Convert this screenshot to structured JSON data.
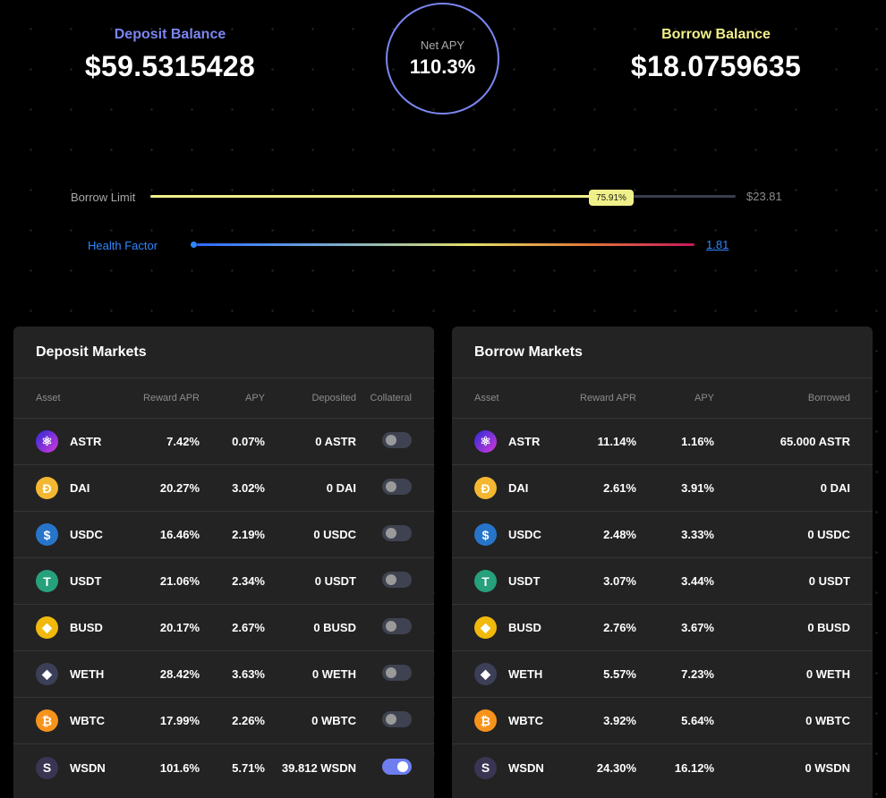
{
  "summary": {
    "deposit_label": "Deposit Balance",
    "deposit_value": "$59.5315428",
    "borrow_label": "Borrow Balance",
    "borrow_value": "$18.0759635",
    "net_apy_label": "Net APY",
    "net_apy_value": "110.3%"
  },
  "borrow_limit": {
    "label": "Borrow Limit",
    "percent_text": "75.91%",
    "percent": 75.91,
    "max_value": "$23.81"
  },
  "health_factor": {
    "label": "Health Factor",
    "value": "1.81"
  },
  "colors": {
    "deposit_accent": "#7b86f0",
    "borrow_accent": "#f0f08a",
    "health_blue": "#2f86ff",
    "toggle_on": "#6e7ef0"
  },
  "deposit_markets": {
    "title": "Deposit Markets",
    "headers": {
      "asset": "Asset",
      "reward": "Reward APR",
      "apy": "APY",
      "deposited": "Deposited",
      "collateral": "Collateral"
    },
    "rows": [
      {
        "asset": "ASTR",
        "icon": "astar-icon",
        "reward": "7.42%",
        "apy": "0.07%",
        "deposited": "0 ASTR",
        "collateral": false
      },
      {
        "asset": "DAI",
        "icon": "dai-icon",
        "reward": "20.27%",
        "apy": "3.02%",
        "deposited": "0 DAI",
        "collateral": false
      },
      {
        "asset": "USDC",
        "icon": "usdc-icon",
        "reward": "16.46%",
        "apy": "2.19%",
        "deposited": "0 USDC",
        "collateral": false
      },
      {
        "asset": "USDT",
        "icon": "tether-icon",
        "reward": "21.06%",
        "apy": "2.34%",
        "deposited": "0 USDT",
        "collateral": false
      },
      {
        "asset": "BUSD",
        "icon": "busd-icon",
        "reward": "20.17%",
        "apy": "2.67%",
        "deposited": "0 BUSD",
        "collateral": false
      },
      {
        "asset": "WETH",
        "icon": "ethereum-icon",
        "reward": "28.42%",
        "apy": "3.63%",
        "deposited": "0 WETH",
        "collateral": false
      },
      {
        "asset": "WBTC",
        "icon": "bitcoin-icon",
        "reward": "17.99%",
        "apy": "2.26%",
        "deposited": "0 WBTC",
        "collateral": false
      },
      {
        "asset": "WSDN",
        "icon": "shiden-icon",
        "reward": "101.6%",
        "apy": "5.71%",
        "deposited": "39.812 WSDN",
        "collateral": true
      }
    ]
  },
  "borrow_markets": {
    "title": "Borrow Markets",
    "headers": {
      "asset": "Asset",
      "reward": "Reward APR",
      "apy": "APY",
      "borrowed": "Borrowed"
    },
    "rows": [
      {
        "asset": "ASTR",
        "icon": "astar-icon",
        "reward": "11.14%",
        "apy": "1.16%",
        "borrowed": "65.000 ASTR"
      },
      {
        "asset": "DAI",
        "icon": "dai-icon",
        "reward": "2.61%",
        "apy": "3.91%",
        "borrowed": "0 DAI"
      },
      {
        "asset": "USDC",
        "icon": "usdc-icon",
        "reward": "2.48%",
        "apy": "3.33%",
        "borrowed": "0 USDC"
      },
      {
        "asset": "USDT",
        "icon": "tether-icon",
        "reward": "3.07%",
        "apy": "3.44%",
        "borrowed": "0 USDT"
      },
      {
        "asset": "BUSD",
        "icon": "busd-icon",
        "reward": "2.76%",
        "apy": "3.67%",
        "borrowed": "0 BUSD"
      },
      {
        "asset": "WETH",
        "icon": "ethereum-icon",
        "reward": "5.57%",
        "apy": "7.23%",
        "borrowed": "0 WETH"
      },
      {
        "asset": "WBTC",
        "icon": "bitcoin-icon",
        "reward": "3.92%",
        "apy": "5.64%",
        "borrowed": "0 WBTC"
      },
      {
        "asset": "WSDN",
        "icon": "shiden-icon",
        "reward": "24.30%",
        "apy": "16.12%",
        "borrowed": "0 WSDN"
      }
    ]
  }
}
